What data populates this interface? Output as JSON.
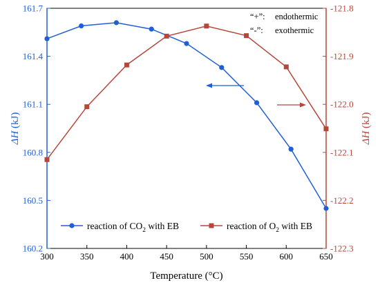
{
  "chart_data": {
    "type": "line",
    "x_axis": {
      "label": "Temperature (°C)",
      "range": [
        300,
        650
      ],
      "ticks": [
        "300",
        "350",
        "400",
        "450",
        "500",
        "550",
        "600",
        "650"
      ]
    },
    "y_left": {
      "label_italic": "ΔH",
      "label_unit": " (kJ)",
      "range": [
        160.2,
        161.7
      ],
      "ticks": [
        "161.7",
        "161.4",
        "161.1",
        "160.8",
        "160.5",
        "160.2"
      ],
      "color": "#1f5fd6"
    },
    "y_right": {
      "label_italic": "ΔH",
      "label_unit": " (kJ)",
      "range": [
        -122.3,
        -121.8
      ],
      "ticks": [
        "-121.8",
        "-121.9",
        "-122.0",
        "-122.1",
        "-122.2",
        "-122.3"
      ],
      "color": "#b5463a"
    },
    "series": [
      {
        "name": "reaction of CO2 with EB",
        "legend_parts": [
          "reaction of CO",
          "2",
          " with EB"
        ],
        "axis": "left",
        "color": "#1f5fd6",
        "marker": "circle",
        "x": [
          300,
          343,
          387,
          431,
          475,
          519,
          563,
          606,
          650
        ],
        "y": [
          161.51,
          161.59,
          161.61,
          161.57,
          161.48,
          161.33,
          161.11,
          160.82,
          160.45
        ]
      },
      {
        "name": "reaction of O2 with EB",
        "legend_parts": [
          "reaction of O",
          "2",
          " with EB"
        ],
        "axis": "right",
        "color": "#b5463a",
        "marker": "square",
        "x": [
          300,
          350,
          400,
          450,
          500,
          550,
          600,
          650
        ],
        "y": [
          -122.115,
          -122.005,
          -121.918,
          -121.858,
          -121.837,
          -121.857,
          -121.922,
          -122.051
        ]
      }
    ],
    "legend_position": "bottom-left",
    "annotations": {
      "endo_symbol": "“+”:",
      "endo_text": "endothermic",
      "exo_symbol": "“-”:",
      "exo_text": "exothermic"
    }
  }
}
